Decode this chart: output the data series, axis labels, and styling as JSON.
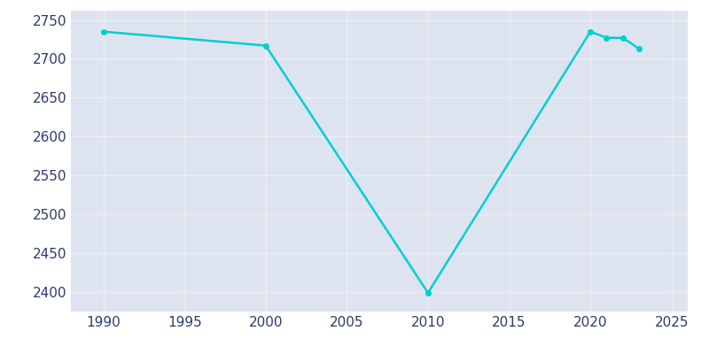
{
  "years": [
    1990,
    2000,
    2010,
    2020,
    2021,
    2022,
    2023
  ],
  "population": [
    2735,
    2717,
    2399,
    2735,
    2727,
    2727,
    2713
  ],
  "line_color": "#00CED1",
  "marker_color": "#00CED1",
  "plot_bg_color": "#DDE4EF",
  "fig_bg_color": "#FFFFFF",
  "grid_color": "#EAEFF7",
  "text_color": "#2E3A6E",
  "xlim": [
    1988,
    2026
  ],
  "ylim": [
    2375,
    2762
  ],
  "xticks": [
    1990,
    1995,
    2000,
    2005,
    2010,
    2015,
    2020,
    2025
  ],
  "yticks": [
    2400,
    2450,
    2500,
    2550,
    2600,
    2650,
    2700,
    2750
  ],
  "figsize": [
    8.0,
    4.0
  ],
  "dpi": 100
}
